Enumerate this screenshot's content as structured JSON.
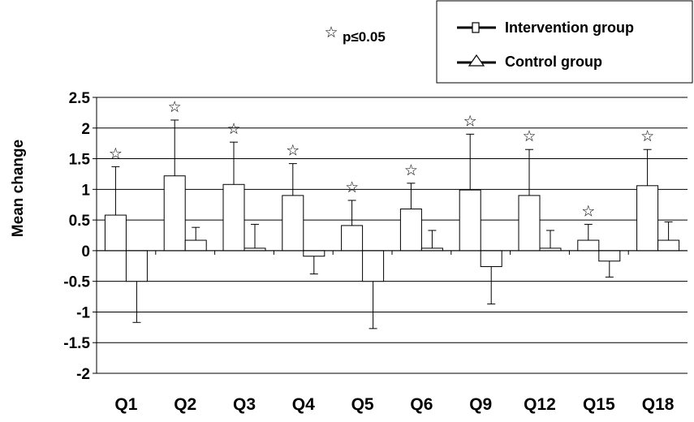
{
  "chart_data": {
    "type": "bar",
    "categories": [
      "Q1",
      "Q2",
      "Q3",
      "Q4",
      "Q5",
      "Q6",
      "Q9",
      "Q12",
      "Q15",
      "Q18"
    ],
    "series": [
      {
        "name": "Intervention group",
        "values": [
          0.58,
          1.22,
          1.08,
          0.9,
          0.41,
          0.68,
          0.99,
          0.9,
          0.17,
          1.06
        ],
        "error": [
          0.79,
          0.91,
          0.69,
          0.52,
          0.41,
          0.42,
          0.91,
          0.75,
          0.26,
          0.59
        ],
        "fill": "#ffffff"
      },
      {
        "name": "Control group",
        "values": [
          -0.5,
          0.17,
          0.04,
          -0.09,
          -0.5,
          0.04,
          -0.26,
          0.04,
          -0.17,
          0.17
        ],
        "error": [
          0.67,
          0.21,
          0.39,
          0.29,
          0.77,
          0.29,
          0.61,
          0.29,
          0.26,
          0.3
        ],
        "fill": "#ffffff"
      }
    ],
    "significant": [
      true,
      true,
      true,
      true,
      true,
      true,
      true,
      true,
      true,
      true
    ],
    "significance_marker": "☆",
    "significance_label": "p≤0.05",
    "ylabel": "Mean change",
    "xlabel": "",
    "ylim": [
      -2,
      2.5
    ],
    "yticks": [
      "2.5",
      "2",
      "1.5",
      "1",
      "0.5",
      "0",
      "-0.5",
      "-1",
      "-1.5",
      "-2"
    ],
    "ytick_values": [
      2.5,
      2,
      1.5,
      1,
      0.5,
      0,
      -0.5,
      -1,
      -1.5,
      -2
    ],
    "grid": true,
    "legend_position": "top-right",
    "colors": {
      "line": "#000000",
      "background": "#ffffff"
    }
  }
}
